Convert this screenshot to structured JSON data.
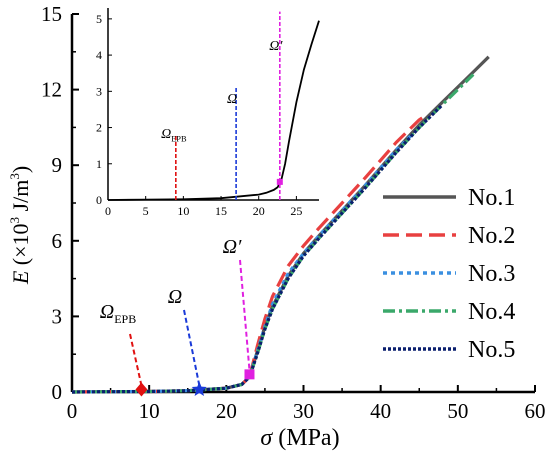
{
  "chart_data": [
    {
      "type": "line",
      "xlabel": {
        "symbol": "σ",
        "unit": " (MPa)"
      },
      "ylabel": {
        "symbol": "E",
        "unit_pre": " (×10",
        "unit_exp": "3",
        "unit_mid": " J/m",
        "unit_exp2": "3",
        "unit_post": ")"
      },
      "xlim": [
        0,
        60
      ],
      "ylim": [
        0,
        15
      ],
      "xticks": [
        0,
        10,
        20,
        30,
        40,
        50,
        60
      ],
      "yticks": [
        0,
        3,
        6,
        9,
        12,
        15
      ],
      "legend_position": "right-center",
      "series": [
        {
          "name": "No.1",
          "color": "#555555",
          "dash": "solid",
          "x": [
            0,
            5,
            10,
            15,
            20,
            22,
            23,
            24,
            25,
            26,
            28,
            30,
            32,
            35,
            38,
            40,
            42,
            45,
            48,
            50,
            52,
            54
          ],
          "y": [
            0,
            0.01,
            0.02,
            0.05,
            0.15,
            0.3,
            0.6,
            1.6,
            2.6,
            3.4,
            4.6,
            5.5,
            6.2,
            7.2,
            8.2,
            8.9,
            9.6,
            10.6,
            11.5,
            12.1,
            12.7,
            13.3
          ]
        },
        {
          "name": "No.2",
          "color": "#e84040",
          "dash": "long-dash",
          "x": [
            0,
            5,
            10,
            15,
            20,
            22,
            23,
            24,
            25,
            26,
            28,
            30,
            32,
            35,
            38,
            40,
            42,
            45,
            46
          ],
          "y": [
            0,
            0.01,
            0.02,
            0.05,
            0.15,
            0.3,
            0.6,
            1.8,
            2.9,
            3.8,
            5.0,
            5.8,
            6.5,
            7.5,
            8.5,
            9.2,
            9.9,
            10.8,
            11.0
          ]
        },
        {
          "name": "No.3",
          "color": "#3a8fe0",
          "dash": "dot",
          "x": [
            0,
            5,
            10,
            15,
            20,
            22,
            23,
            24,
            25,
            26,
            28,
            30,
            32,
            35,
            38,
            40,
            42,
            44
          ],
          "y": [
            0,
            0.01,
            0.02,
            0.05,
            0.15,
            0.3,
            0.6,
            1.6,
            2.6,
            3.5,
            4.7,
            5.5,
            6.2,
            7.2,
            8.2,
            8.9,
            9.6,
            10.2
          ]
        },
        {
          "name": "No.4",
          "color": "#3aa86a",
          "dash": "dash-dot",
          "x": [
            0,
            5,
            10,
            15,
            20,
            22,
            23,
            24,
            25,
            26,
            28,
            30,
            32,
            35,
            38,
            40,
            42,
            45,
            48,
            50,
            52
          ],
          "y": [
            0,
            0.01,
            0.02,
            0.05,
            0.15,
            0.3,
            0.6,
            1.5,
            2.5,
            3.3,
            4.5,
            5.4,
            6.1,
            7.1,
            8.1,
            8.8,
            9.5,
            10.5,
            11.4,
            12.0,
            12.6
          ]
        },
        {
          "name": "No.5",
          "color": "#0a1f6e",
          "dash": "short-dot",
          "x": [
            0,
            5,
            10,
            15,
            20,
            22,
            23,
            24,
            25,
            26,
            28,
            30,
            32,
            35,
            38,
            40,
            42,
            45,
            48
          ],
          "y": [
            0,
            0.01,
            0.02,
            0.05,
            0.15,
            0.3,
            0.6,
            1.5,
            2.5,
            3.3,
            4.5,
            5.4,
            6.1,
            7.1,
            8.1,
            8.8,
            9.5,
            10.5,
            11.4
          ]
        }
      ],
      "annotations": [
        {
          "label_main": "Ω",
          "label_sub": "EPB",
          "x": 9,
          "y": 0.1,
          "color": "#e01010",
          "marker": "diamond"
        },
        {
          "label_main": "Ω",
          "label_sub": "",
          "x": 16.5,
          "y": 0.1,
          "color": "#1a3ad8",
          "marker": "star"
        },
        {
          "label_main": "Ω′",
          "label_sub": "",
          "x": 23,
          "y": 0.7,
          "color": "#e020e0",
          "marker": "square"
        }
      ]
    },
    {
      "type": "line",
      "xlim": [
        0,
        28
      ],
      "ylim": [
        0,
        5.3
      ],
      "xticks": [
        0,
        5,
        10,
        15,
        20,
        25
      ],
      "yticks": [
        0,
        1,
        2,
        3,
        4,
        5
      ],
      "series": [
        {
          "color": "#000000",
          "x": [
            0,
            5,
            10,
            15,
            20,
            21,
            22,
            22.5,
            23,
            23.5,
            24,
            25,
            26,
            27,
            28
          ],
          "y": [
            0,
            0.01,
            0.02,
            0.05,
            0.15,
            0.2,
            0.28,
            0.35,
            0.55,
            1.0,
            1.6,
            2.7,
            3.6,
            4.3,
            4.95
          ]
        }
      ],
      "markers": [
        {
          "label_main": "Ω",
          "label_sub": "EPB",
          "x": 9,
          "line_top": 1.8,
          "color": "#e01010"
        },
        {
          "label_main": "Ω",
          "label_sub": "",
          "x": 17,
          "line_top": 3.1,
          "color": "#1a3ad8"
        },
        {
          "label_main": "Ω′",
          "label_sub": "",
          "x": 22.8,
          "line_top": 5.2,
          "color": "#e020e0",
          "point_y": 0.5
        }
      ]
    }
  ]
}
